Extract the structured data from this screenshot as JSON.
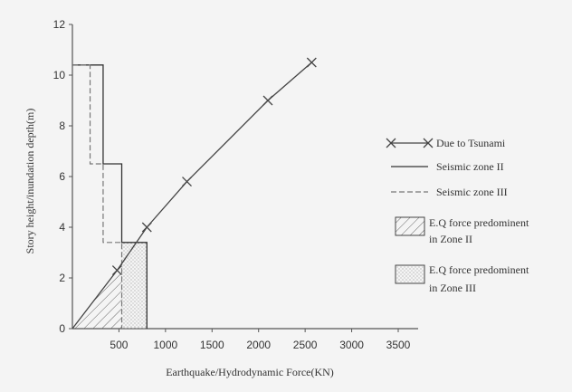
{
  "chart_data": {
    "type": "line",
    "xlabel": "Earthquake/Hydrodynamic Force(KN)",
    "ylabel": "Story height/inundation depth(m)",
    "xlim": [
      0,
      3500
    ],
    "ylim": [
      0,
      12
    ],
    "x_ticks": [
      "500",
      "1000",
      "1500",
      "2000",
      "2500",
      "3000",
      "3500"
    ],
    "y_ticks": [
      "0",
      "2",
      "4",
      "6",
      "8",
      "10",
      "12"
    ],
    "series": [
      {
        "name": "Due to Tsunami",
        "style": "line-with-x-markers",
        "color": "#444444",
        "x": [
          0,
          480,
          800,
          1230,
          2100,
          2570
        ],
        "y": [
          0,
          2.3,
          4.0,
          5.8,
          9.0,
          10.5
        ]
      },
      {
        "name": "Seismic zone II",
        "style": "solid-step",
        "color": "#333333",
        "x": [
          0,
          330,
          330,
          530,
          530,
          800,
          800
        ],
        "y": [
          10.4,
          10.4,
          6.5,
          6.5,
          3.4,
          3.4,
          0
        ]
      },
      {
        "name": "Seismic zone III",
        "style": "dashed-step",
        "color": "#777777",
        "x": [
          0,
          190,
          190,
          330,
          330,
          530,
          530
        ],
        "y": [
          10.4,
          10.4,
          6.5,
          6.5,
          3.4,
          3.4,
          0
        ]
      }
    ],
    "regions": [
      {
        "name": "E.Q force predominent in Zone II",
        "pattern": "hatch"
      },
      {
        "name": "E.Q force predominent in Zone III",
        "pattern": "dotted"
      }
    ],
    "legend_position": "right",
    "grid": false
  }
}
